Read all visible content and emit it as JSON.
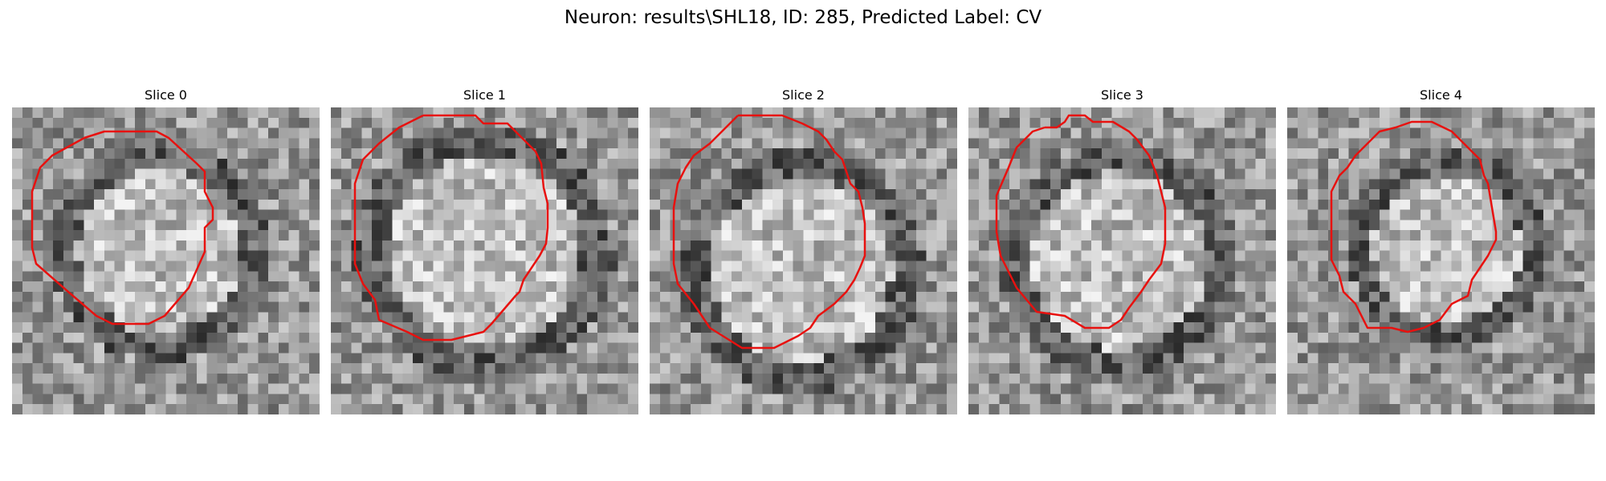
{
  "figure": {
    "title": "Neuron: results\\SHL18, ID: 285, Predicted Label: CV"
  },
  "slices": [
    {
      "title": "Slice 0"
    },
    {
      "title": "Slice 1"
    },
    {
      "title": "Slice 2"
    },
    {
      "title": "Slice 3"
    },
    {
      "title": "Slice 4"
    }
  ],
  "colors": {
    "contour": "#e8110f",
    "colormap": "gray"
  }
}
